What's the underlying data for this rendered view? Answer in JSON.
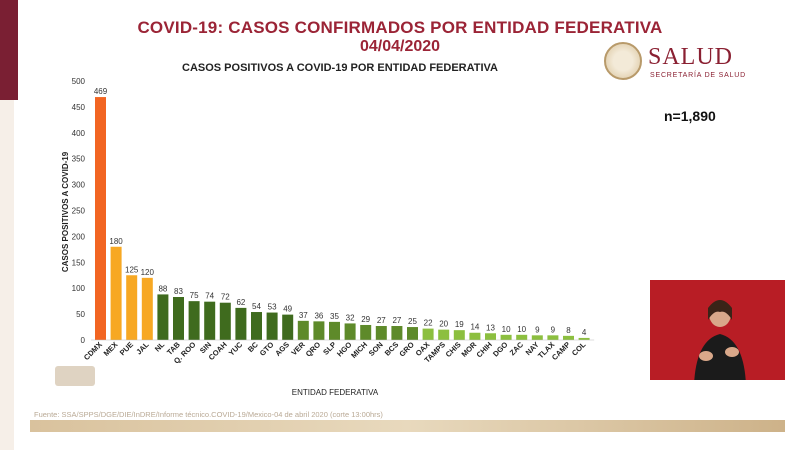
{
  "header": {
    "title_line1": "COVID-19: CASOS CONFIRMADOS POR ENTIDAD FEDERATIVA",
    "title_line2": "04/04/2020"
  },
  "logo": {
    "word": "SALUD",
    "subtitle": "SECRETARÍA DE SALUD"
  },
  "n_label": "n=1,890",
  "source": "Fuente: SSA/SPPS/DGE/DIE/InDRE/Informe técnico.COVID-19/Mexico-04 de abril 2020 (corte 13:00hrs)",
  "colors": {
    "title": "#9b2436",
    "top1": "#f26522",
    "top2to4": "#f7a823",
    "dark_green": "#3f6b1e",
    "mid_green": "#5e8a2a",
    "light_green": "#8cbf3f"
  },
  "chart_data": {
    "type": "bar",
    "title": "CASOS POSITIVOS A COVID-19 POR ENTIDAD FEDERATIVA",
    "xlabel": "ENTIDAD FEDERATIVA",
    "ylabel": "CASOS POSITIVOS A COVID-19",
    "ylim": [
      0,
      500
    ],
    "yticks": [
      0,
      50,
      100,
      150,
      200,
      250,
      300,
      350,
      400,
      450,
      500
    ],
    "grid": false,
    "categories": [
      "CDMX",
      "MEX",
      "PUE",
      "JAL",
      "NL",
      "TAB",
      "Q. ROO",
      "SIN",
      "COAH",
      "YUC",
      "BC",
      "GTO",
      "AGS",
      "VER",
      "QRO",
      "SLP",
      "HGO",
      "MICH",
      "SON",
      "BCS",
      "GRO",
      "OAX",
      "TAMPS",
      "CHIS",
      "MOR",
      "CHIH",
      "DGO",
      "ZAC",
      "NAY",
      "TLAX",
      "CAMP",
      "COL"
    ],
    "values": [
      469,
      180,
      125,
      120,
      88,
      83,
      75,
      74,
      72,
      62,
      54,
      53,
      49,
      37,
      36,
      35,
      32,
      29,
      27,
      27,
      25,
      22,
      20,
      19,
      14,
      13,
      10,
      10,
      9,
      9,
      8,
      4
    ]
  }
}
